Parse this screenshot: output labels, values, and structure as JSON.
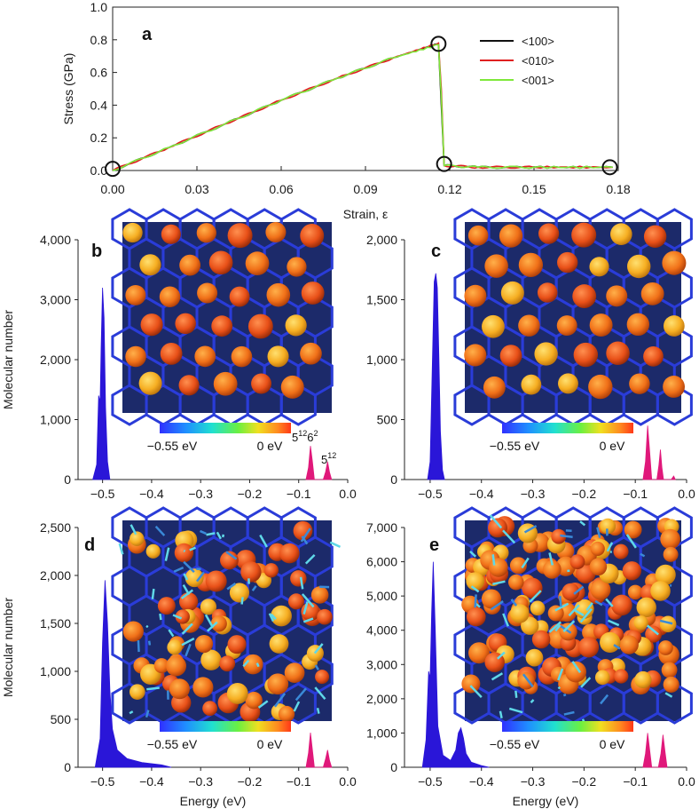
{
  "colors": {
    "s100": "#111111",
    "s010": "#e02020",
    "s001": "#7ee83a",
    "blue_peak": "#2a16d8",
    "pink_peak": "#e0187a",
    "cage": "#2a3cd8",
    "bg_dark": "#1c2a6a"
  },
  "chart_data": [
    {
      "id": "a",
      "type": "line",
      "panel_label": "a",
      "xlabel": "Strain, ε",
      "ylabel": "Stress (GPa)",
      "xlim": [
        0,
        0.18
      ],
      "ylim": [
        0,
        1.0
      ],
      "xticks": [
        "0.00",
        "0.03",
        "0.06",
        "0.09",
        "0.12",
        "0.15",
        "0.18"
      ],
      "xtick_values": [
        0,
        0.03,
        0.06,
        0.09,
        0.12,
        0.15,
        0.18
      ],
      "yticks": [
        "0.0",
        "0.2",
        "0.4",
        "0.6",
        "0.8",
        "1.0"
      ],
      "ytick_values": [
        0,
        0.2,
        0.4,
        0.6,
        0.8,
        1.0
      ],
      "series": [
        {
          "name": "<100>",
          "x": [
            0,
            0.02,
            0.04,
            0.06,
            0.08,
            0.1,
            0.116,
            0.117,
            0.118,
            0.13,
            0.15,
            0.178
          ],
          "y": [
            0,
            0.14,
            0.285,
            0.43,
            0.565,
            0.69,
            0.775,
            0.4,
            0.03,
            0.02,
            0.02,
            0.02
          ]
        },
        {
          "name": "<010>",
          "x": [
            0,
            0.02,
            0.04,
            0.06,
            0.08,
            0.1,
            0.116,
            0.117,
            0.118,
            0.13,
            0.15,
            0.178
          ],
          "y": [
            0,
            0.14,
            0.285,
            0.43,
            0.565,
            0.69,
            0.78,
            0.5,
            0.03,
            0.02,
            0.02,
            0.02
          ]
        },
        {
          "name": "<001>",
          "x": [
            0,
            0.02,
            0.04,
            0.06,
            0.08,
            0.1,
            0.116,
            0.117,
            0.118,
            0.13,
            0.15,
            0.178
          ],
          "y": [
            0,
            0.14,
            0.285,
            0.43,
            0.565,
            0.69,
            0.77,
            0.45,
            0.03,
            0.02,
            0.02,
            0.02
          ]
        }
      ],
      "markers": [
        {
          "x": 0.0,
          "y": 0.01
        },
        {
          "x": 0.116,
          "y": 0.775
        },
        {
          "x": 0.118,
          "y": 0.04
        },
        {
          "x": 0.177,
          "y": 0.02
        }
      ],
      "legend": [
        "<100>",
        "<010>",
        "<001>"
      ]
    },
    {
      "id": "b",
      "type": "area",
      "panel_label": "b",
      "ylabel": "Molecular number",
      "xlim": [
        -0.55,
        0.0
      ],
      "ylim": [
        0,
        4000
      ],
      "yticks": [
        "0",
        "1,000",
        "2,000",
        "3,000",
        "4,000"
      ],
      "ytick_values": [
        0,
        1000,
        2000,
        3000,
        4000
      ],
      "xticks": [
        "−0.5",
        "−0.4",
        "−0.3",
        "−0.2",
        "−0.1",
        "0.0"
      ],
      "xtick_values": [
        -0.5,
        -0.4,
        -0.3,
        -0.2,
        -0.1,
        0.0
      ],
      "blue": {
        "x": [
          -0.52,
          -0.512,
          -0.508,
          -0.505,
          -0.503,
          -0.5,
          -0.497,
          -0.494,
          -0.49,
          -0.485
        ],
        "y": [
          0,
          250,
          1400,
          1300,
          2200,
          3200,
          2700,
          1200,
          300,
          0
        ]
      },
      "pink": {
        "x": [
          -0.085,
          -0.08,
          -0.076,
          -0.072,
          -0.068,
          -0.05,
          -0.045,
          -0.041,
          -0.037,
          -0.033
        ],
        "y": [
          0,
          200,
          560,
          300,
          0,
          0,
          130,
          300,
          120,
          0
        ]
      },
      "colorbar_min": "−0.55 eV",
      "colorbar_max": "0 eV",
      "annotation_5_12_6_2": {
        "base1": "5",
        "sup1": "12",
        "base2": "6",
        "sup2": "2"
      },
      "annotation_5_12": {
        "base": "5",
        "sup": "12"
      }
    },
    {
      "id": "c",
      "type": "area",
      "panel_label": "c",
      "xlim": [
        -0.55,
        0.0
      ],
      "ylim": [
        0,
        2000
      ],
      "yticks": [
        "0",
        "500",
        "1,000",
        "1,500",
        "2,000"
      ],
      "ytick_values": [
        0,
        500,
        1000,
        1500,
        2000
      ],
      "xticks": [
        "−0.5",
        "−0.4",
        "−0.3",
        "−0.2",
        "−0.1",
        "0.0"
      ],
      "xtick_values": [
        -0.5,
        -0.4,
        -0.3,
        -0.2,
        -0.1,
        0.0
      ],
      "blue": {
        "x": [
          -0.505,
          -0.5,
          -0.496,
          -0.492,
          -0.489,
          -0.486,
          -0.483,
          -0.48,
          -0.476,
          -0.472
        ],
        "y": [
          0,
          150,
          900,
          1650,
          1720,
          1600,
          1050,
          400,
          80,
          0
        ]
      },
      "pink": {
        "x": [
          -0.085,
          -0.08,
          -0.076,
          -0.072,
          -0.068,
          -0.058,
          -0.054,
          -0.051,
          -0.048,
          -0.045,
          -0.03,
          -0.025,
          -0.022
        ],
        "y": [
          0,
          150,
          450,
          230,
          0,
          0,
          120,
          250,
          100,
          0,
          0,
          30,
          0
        ]
      },
      "colorbar_min": "−0.55 eV",
      "colorbar_max": "0 eV"
    },
    {
      "id": "d",
      "type": "area",
      "panel_label": "d",
      "ylabel": "Molecular number",
      "xlabel": "Energy (eV)",
      "xlim": [
        -0.55,
        0.0
      ],
      "ylim": [
        0,
        2500
      ],
      "yticks": [
        "0",
        "500",
        "1,000",
        "1,500",
        "2,000",
        "2,500"
      ],
      "ytick_values": [
        0,
        500,
        1000,
        1500,
        2000,
        2500
      ],
      "xticks": [
        "−0.5",
        "−0.4",
        "−0.3",
        "−0.2",
        "−0.1",
        "0.0"
      ],
      "xtick_values": [
        -0.5,
        -0.4,
        -0.3,
        -0.2,
        -0.1,
        0.0
      ],
      "blue": {
        "x": [
          -0.515,
          -0.505,
          -0.5,
          -0.495,
          -0.49,
          -0.485,
          -0.48,
          -0.47,
          -0.45,
          -0.42,
          -0.38,
          -0.36
        ],
        "y": [
          0,
          300,
          1300,
          1950,
          1500,
          800,
          400,
          180,
          90,
          50,
          25,
          0
        ]
      },
      "pink": {
        "x": [
          -0.085,
          -0.08,
          -0.076,
          -0.072,
          -0.068,
          -0.05,
          -0.045,
          -0.041,
          -0.037,
          -0.033
        ],
        "y": [
          0,
          150,
          360,
          180,
          0,
          0,
          90,
          180,
          70,
          0
        ]
      },
      "colorbar_min": "−0.55 eV",
      "colorbar_max": "0 eV"
    },
    {
      "id": "e",
      "type": "area",
      "panel_label": "e",
      "xlabel": "Energy (eV)",
      "xlim": [
        -0.55,
        0.0
      ],
      "ylim": [
        0,
        7000
      ],
      "yticks": [
        "0",
        "1,000",
        "2,000",
        "3,000",
        "4,000",
        "5,000",
        "6,000",
        "7,000"
      ],
      "ytick_values": [
        0,
        1000,
        2000,
        3000,
        4000,
        5000,
        6000,
        7000
      ],
      "xticks": [
        "−0.5",
        "−0.4",
        "−0.3",
        "−0.2",
        "−0.1",
        "0.0"
      ],
      "xtick_values": [
        -0.5,
        -0.4,
        -0.3,
        -0.2,
        -0.1,
        0.0
      ],
      "blue": {
        "x": [
          -0.515,
          -0.508,
          -0.503,
          -0.5,
          -0.497,
          -0.494,
          -0.49,
          -0.485,
          -0.475,
          -0.46,
          -0.45,
          -0.445,
          -0.44,
          -0.435,
          -0.43,
          -0.42,
          -0.4,
          -0.385
        ],
        "y": [
          0,
          800,
          2800,
          2600,
          4500,
          6000,
          4000,
          1200,
          350,
          200,
          500,
          1000,
          1150,
          850,
          400,
          150,
          50,
          0
        ]
      },
      "pink": {
        "x": [
          -0.085,
          -0.08,
          -0.076,
          -0.072,
          -0.068,
          -0.055,
          -0.05,
          -0.046,
          -0.042,
          -0.038
        ],
        "y": [
          0,
          400,
          1000,
          500,
          0,
          0,
          400,
          950,
          450,
          0
        ]
      },
      "colorbar_min": "−0.55 eV",
      "colorbar_max": "0 eV"
    }
  ]
}
